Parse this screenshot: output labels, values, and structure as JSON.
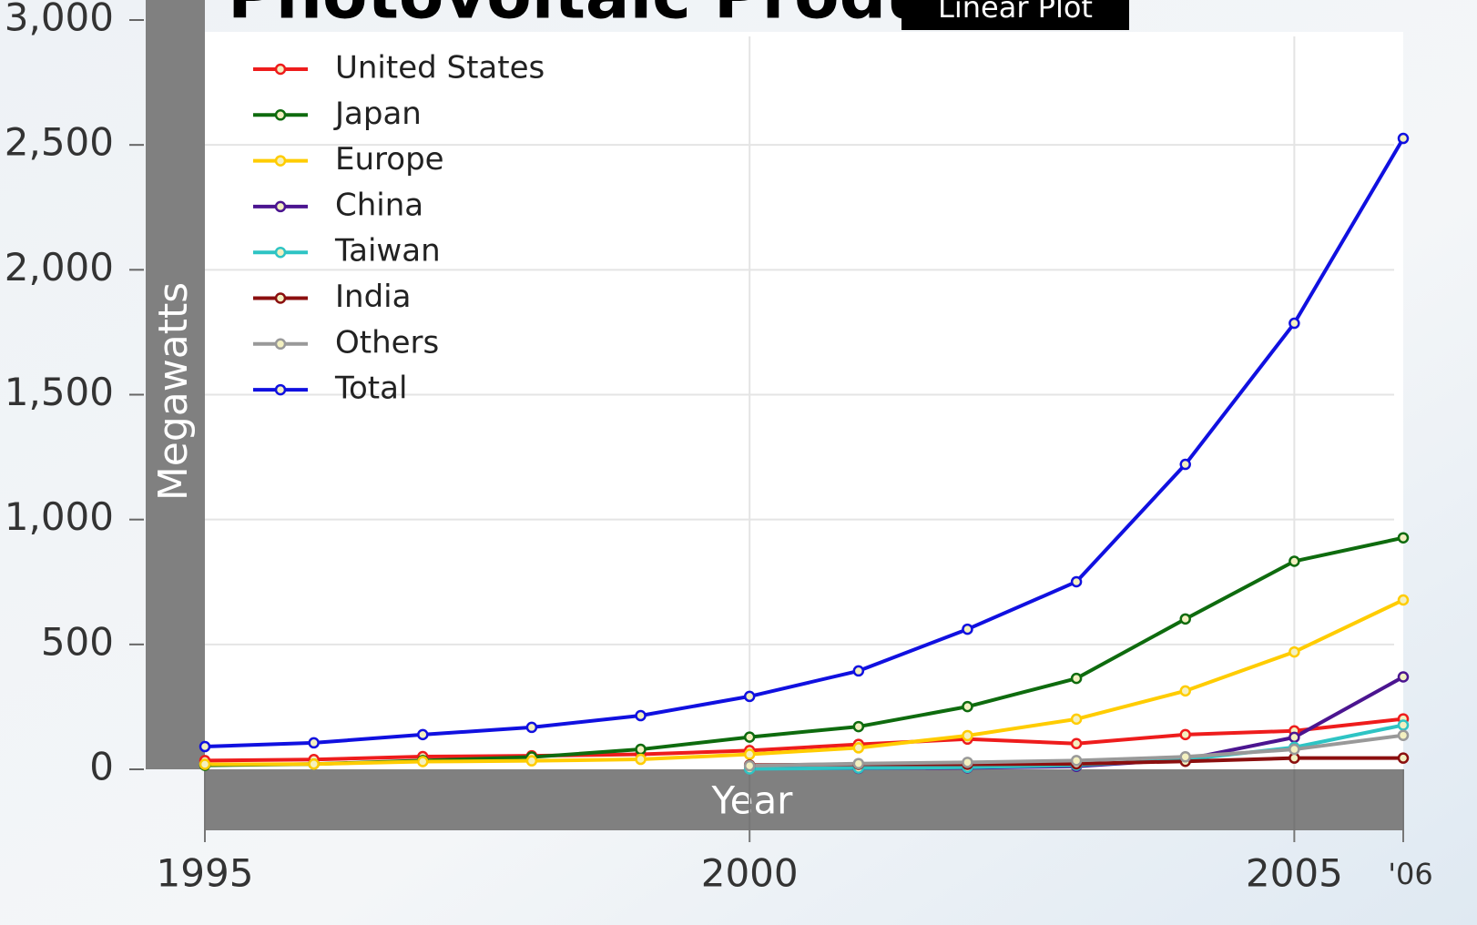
{
  "chart_data": {
    "type": "line",
    "title": "Photovoltaic Production",
    "subtitle": "Linear Plot",
    "x_label": "Year",
    "y_label": "Megawatts",
    "x": [
      1995,
      1996,
      1997,
      1998,
      1999,
      2000,
      2001,
      2002,
      2003,
      2004,
      2005,
      2006
    ],
    "series": [
      {
        "name": "United States",
        "color": "#ee1c1c",
        "values": [
          35,
          39,
          51,
          54,
          60,
          75,
          100,
          121,
          103,
          139,
          154,
          202
        ]
      },
      {
        "name": "Japan",
        "color": "#0e6b0e",
        "values": [
          16,
          21,
          35,
          49,
          80,
          129,
          171,
          251,
          364,
          602,
          833,
          927
        ]
      },
      {
        "name": "Europe",
        "color": "#ffcc00",
        "values": [
          20,
          21,
          31,
          34,
          40,
          60,
          86,
          135,
          201,
          314,
          470,
          678
        ]
      },
      {
        "name": "China",
        "color": "#4b1590",
        "values": [
          null,
          null,
          null,
          null,
          null,
          3,
          4,
          6,
          12,
          40,
          128,
          370
        ]
      },
      {
        "name": "Taiwan",
        "color": "#2ec4c4",
        "values": [
          null,
          null,
          null,
          null,
          null,
          2,
          5,
          8,
          17,
          39,
          88,
          177
        ]
      },
      {
        "name": "India",
        "color": "#8b0f0f",
        "values": [
          null,
          null,
          null,
          null,
          null,
          17,
          20,
          20,
          22,
          32,
          45,
          45
        ]
      },
      {
        "name": "Others",
        "color": "#999999",
        "values": [
          null,
          null,
          null,
          null,
          null,
          14,
          23,
          28,
          35,
          50,
          80,
          136
        ]
      },
      {
        "name": "Total",
        "color": "#1010e0",
        "values": [
          91,
          106,
          139,
          168,
          215,
          292,
          394,
          561,
          751,
          1221,
          1786,
          2526
        ]
      }
    ],
    "xlim": [
      1995,
      2006
    ],
    "xticks": [
      1995,
      2000,
      2005,
      {
        "value": 2006,
        "label": "'06"
      }
    ],
    "ylim": [
      0,
      3000
    ],
    "yticks": [
      0,
      {
        "value": 500,
        "label": "500"
      },
      {
        "value": 1000,
        "label": "1,000"
      },
      {
        "value": 1500,
        "label": "1,500"
      },
      {
        "value": 2000,
        "label": "2,000"
      },
      {
        "value": 2500,
        "label": "2,500"
      },
      {
        "value": 3000,
        "label": "3,000"
      }
    ],
    "grid": true,
    "legend": "top-left"
  }
}
